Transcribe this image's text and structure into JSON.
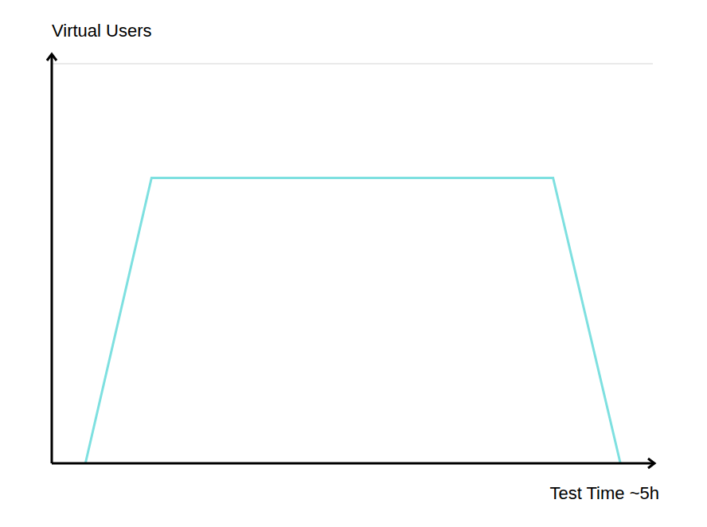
{
  "chart_data": {
    "type": "line",
    "x_label": "Test Time ~5h",
    "y_label": "Virtual Users",
    "x": [
      0.28,
      0.83,
      4.17,
      4.73
    ],
    "values": [
      0,
      5,
      5,
      0
    ],
    "color": "#7ee0e0",
    "xlim": [
      0,
      5
    ],
    "ylim": [
      0,
      7
    ],
    "yticks": [
      0,
      1,
      2,
      3,
      4,
      5,
      6,
      7
    ],
    "grid": true,
    "tick_labels": false
  }
}
